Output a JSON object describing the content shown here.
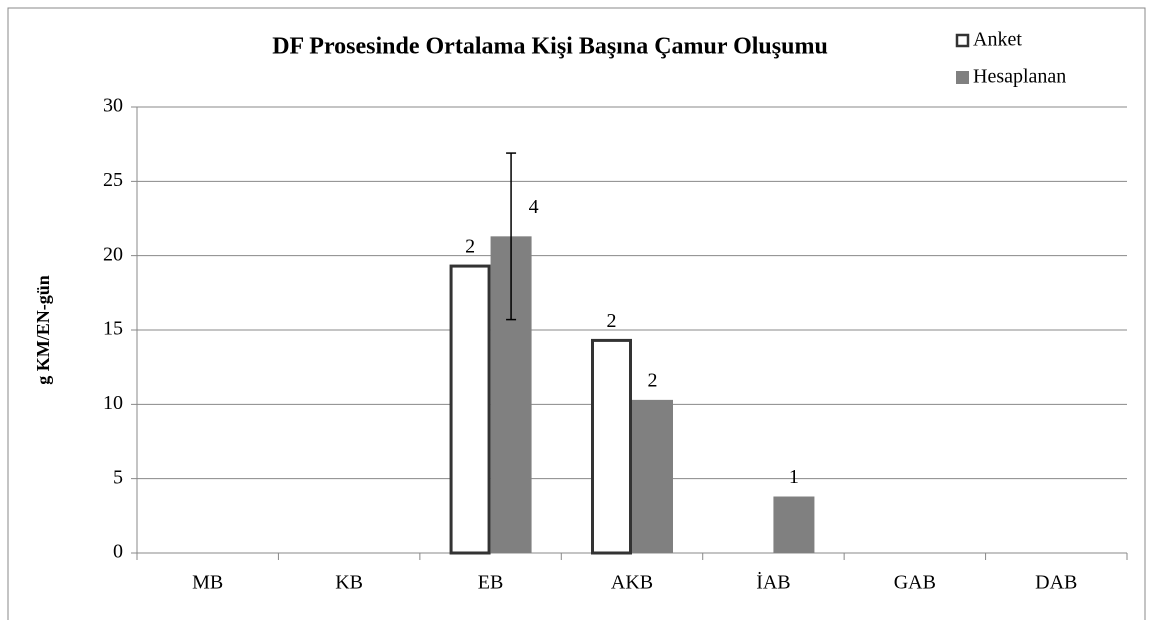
{
  "chart_data": {
    "type": "bar",
    "title": "DF Prosesinde Ortalama Kişi Başına Çamur Oluşumu",
    "y_label": "g KM/EN-gün",
    "categories": [
      "MB",
      "KB",
      "EB",
      "AKB",
      "İAB",
      "GAB",
      "DAB"
    ],
    "series": [
      {
        "name": "Anket",
        "color": "#ffffff",
        "stroke": "#333333",
        "values": [
          null,
          null,
          19.3,
          14.3,
          null,
          null,
          null
        ],
        "n": [
          null,
          null,
          2,
          2,
          null,
          null,
          null
        ]
      },
      {
        "name": "Hesaplanan",
        "color": "#808080",
        "values": [
          null,
          null,
          21.3,
          10.3,
          3.8,
          null,
          null
        ],
        "errors": [
          null,
          null,
          5.6,
          null,
          null,
          null,
          null
        ],
        "n": [
          null,
          null,
          4,
          2,
          1,
          null,
          null
        ]
      }
    ],
    "ylim": [
      0,
      30
    ],
    "yticks": [
      0,
      5,
      10,
      15,
      20,
      25,
      30
    ],
    "grid": true
  }
}
